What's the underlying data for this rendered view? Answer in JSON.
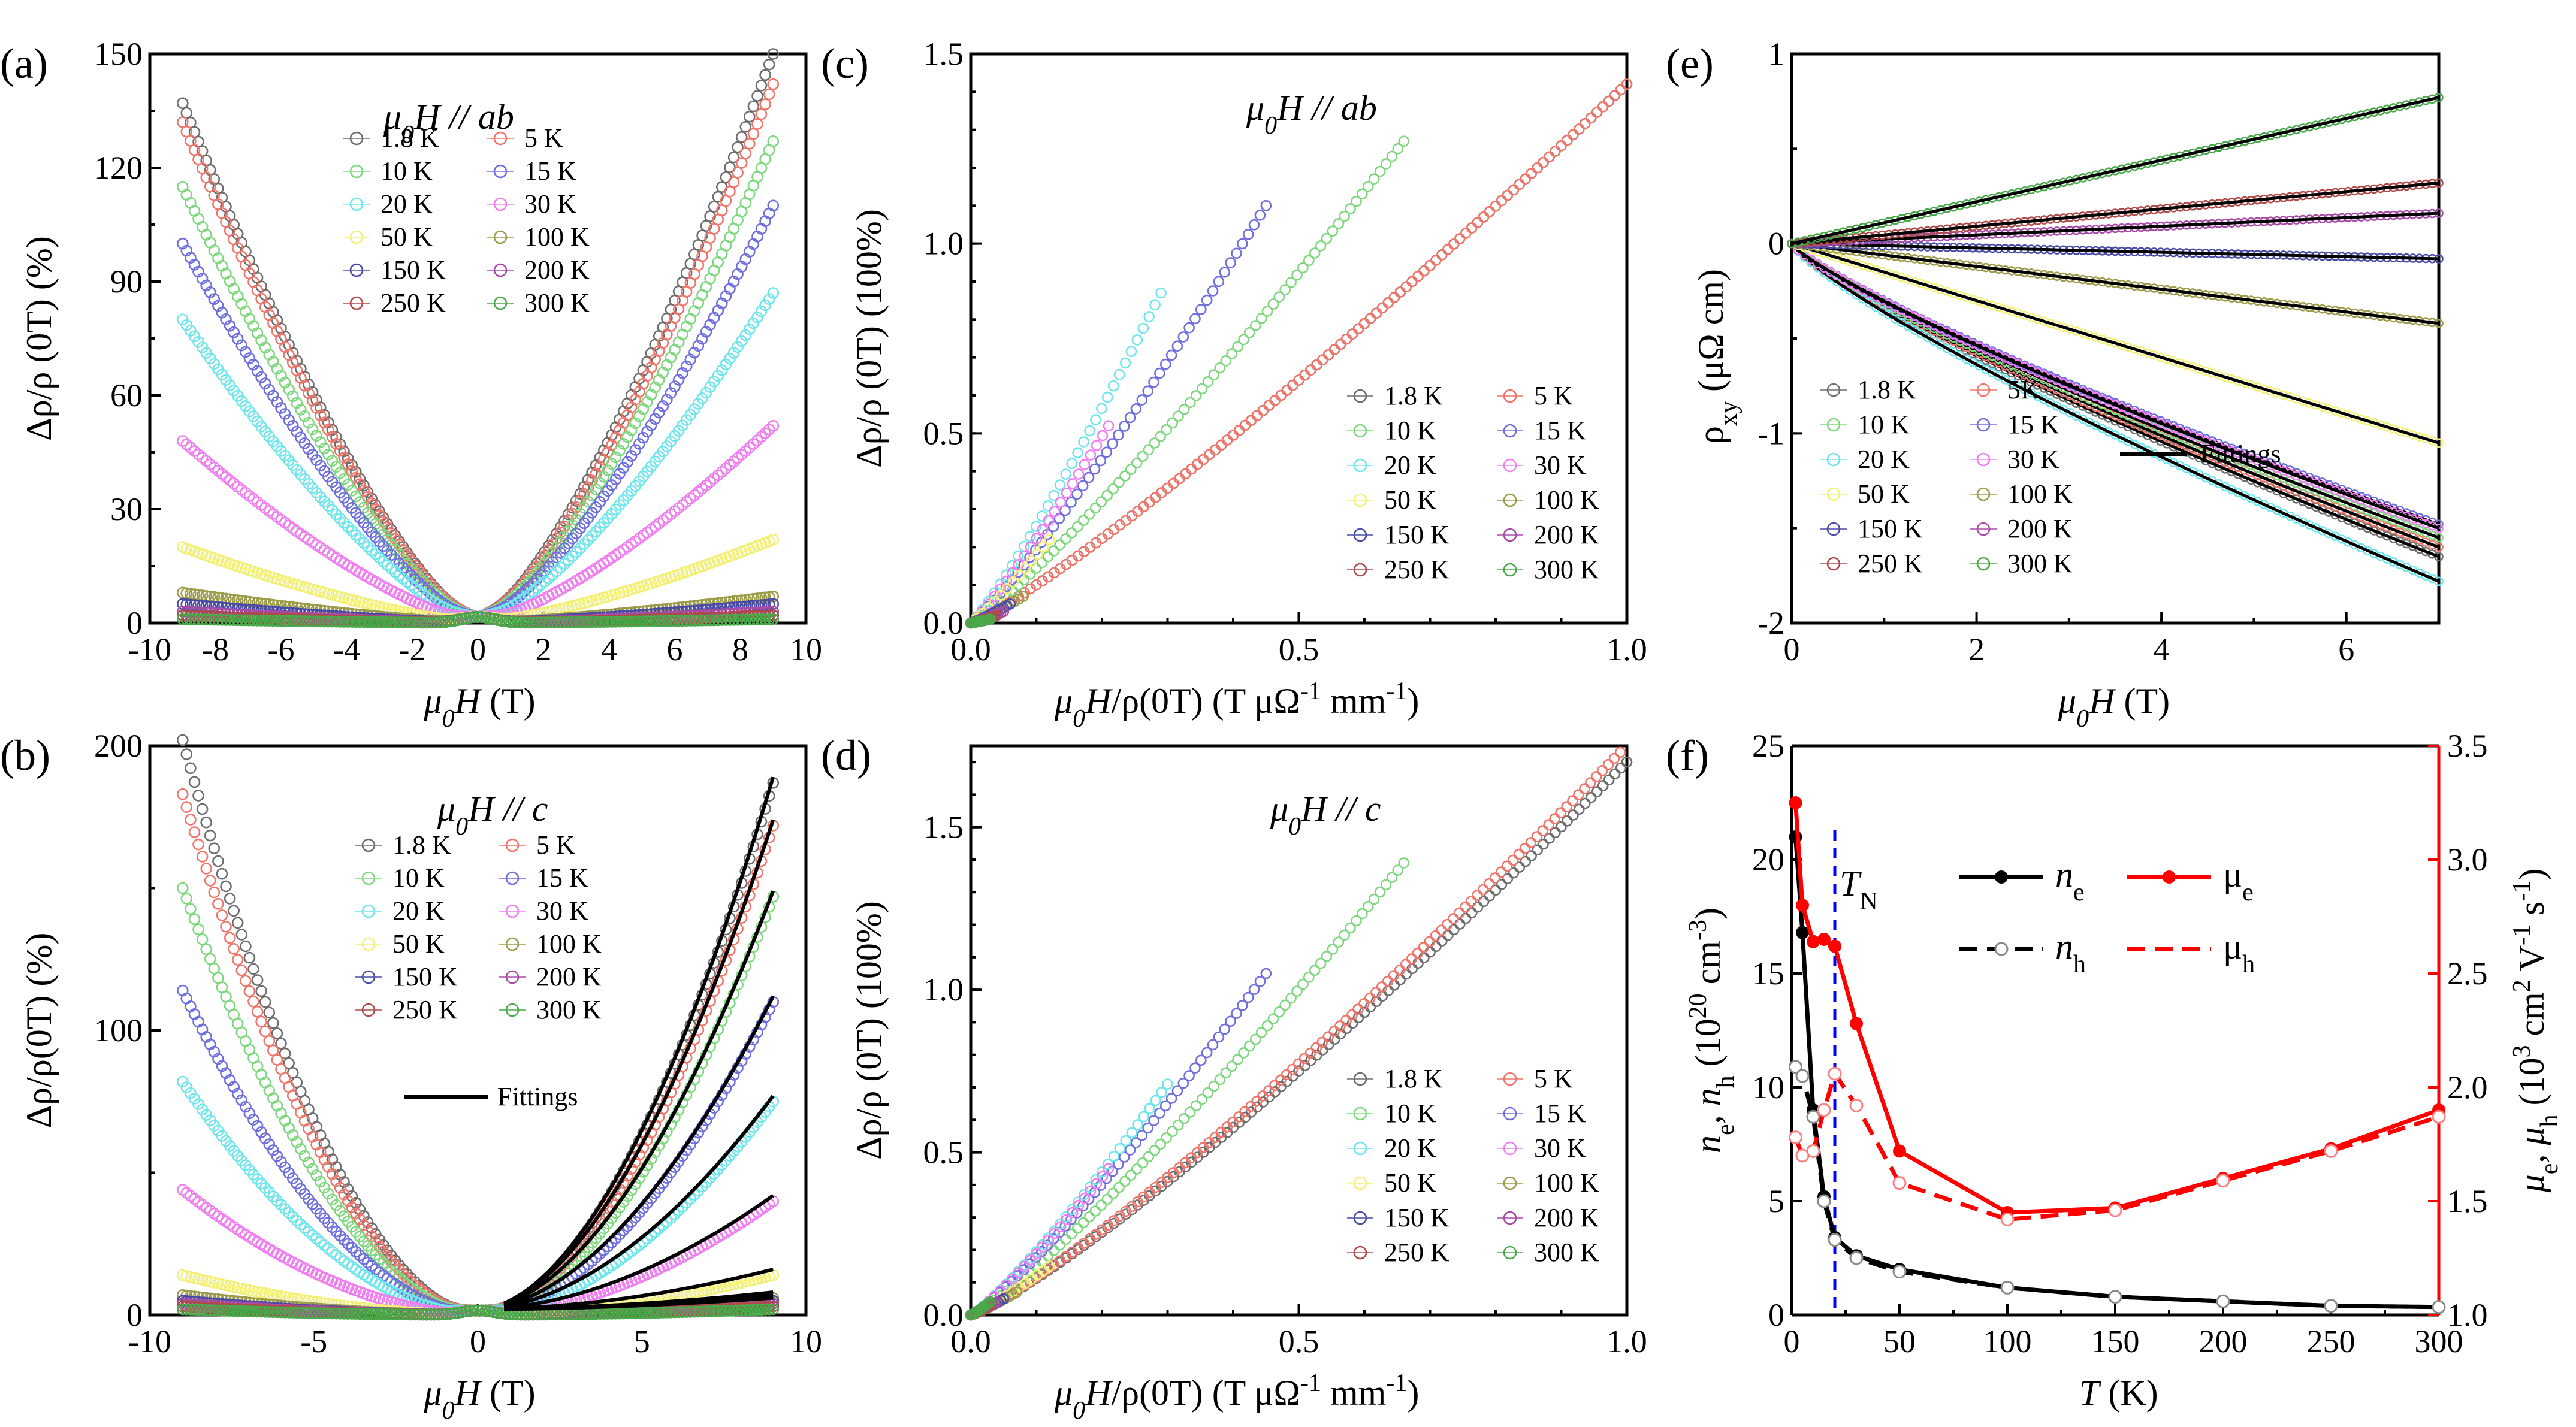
{
  "figure": {
    "palette": {
      "1.8 K": "#6e6e6e",
      "5 K": "#f0756b",
      "10 K": "#7fd87f",
      "15 K": "#6f6fe0",
      "20 K": "#6fe6ec",
      "30 K": "#f07ef0",
      "50 K": "#f3f07a",
      "100 K": "#9c9c4a",
      "150 K": "#4a4aa8",
      "200 K": "#a84aa8",
      "250 K": "#b04a4a",
      "300 K": "#4aa84a",
      "fit": "#000000",
      "accent_red": "#ff0000",
      "tn_blue": "#0000ff"
    }
  },
  "chart_data": [
    {
      "id": "a",
      "panel_label": "(a)",
      "type": "scatter",
      "title": "μ0H // ab",
      "xlabel": "μ0H (T)",
      "ylabel": "Δρ/ρ (0T) (%)",
      "xlim": [
        -10,
        10
      ],
      "ylim": [
        0,
        150
      ],
      "xticks": [
        -10,
        -8,
        -6,
        -4,
        -2,
        0,
        2,
        4,
        6,
        8,
        10
      ],
      "yticks": [
        0,
        30,
        60,
        90,
        120,
        150
      ],
      "legend_position": "top-center",
      "series": [
        {
          "name": "1.8 K",
          "left_end": 137,
          "right_end": 150
        },
        {
          "name": "5 K",
          "left_end": 132,
          "right_end": 142
        },
        {
          "name": "10 K",
          "left_end": 115,
          "right_end": 127
        },
        {
          "name": "15 K",
          "left_end": 100,
          "right_end": 110
        },
        {
          "name": "20 K",
          "left_end": 80,
          "right_end": 87
        },
        {
          "name": "30 K",
          "left_end": 48,
          "right_end": 52
        },
        {
          "name": "50 K",
          "left_end": 20,
          "right_end": 22
        },
        {
          "name": "100 K",
          "left_end": 8,
          "right_end": 7
        },
        {
          "name": "150 K",
          "left_end": 5,
          "right_end": 5
        },
        {
          "name": "200 K",
          "left_end": 3,
          "right_end": 3
        },
        {
          "name": "250 K",
          "left_end": 2,
          "right_end": 2
        },
        {
          "name": "300 K",
          "left_end": 1,
          "right_end": 1
        }
      ]
    },
    {
      "id": "b",
      "panel_label": "(b)",
      "type": "scatter",
      "title": "μ0H // c",
      "xlabel": "μ0H (T)",
      "ylabel": "Δρ/ρ(0T) (%)",
      "xlim": [
        -10,
        10
      ],
      "ylim": [
        0,
        200
      ],
      "xticks": [
        -10,
        -5,
        0,
        5,
        10
      ],
      "yticks": [
        0,
        100,
        200
      ],
      "legend_position": "top-center",
      "fit_label": "Fittings",
      "series": [
        {
          "name": "1.8 K",
          "left_end": 202,
          "right_end": 187
        },
        {
          "name": "5 K",
          "left_end": 183,
          "right_end": 172
        },
        {
          "name": "10 K",
          "left_end": 150,
          "right_end": 147
        },
        {
          "name": "15 K",
          "left_end": 114,
          "right_end": 110
        },
        {
          "name": "20 K",
          "left_end": 82,
          "right_end": 75
        },
        {
          "name": "30 K",
          "left_end": 44,
          "right_end": 40
        },
        {
          "name": "50 K",
          "left_end": 14,
          "right_end": 14
        },
        {
          "name": "100 K",
          "left_end": 7,
          "right_end": 6
        },
        {
          "name": "150 K",
          "left_end": 5,
          "right_end": 5
        },
        {
          "name": "200 K",
          "left_end": 4,
          "right_end": 4
        },
        {
          "name": "250 K",
          "left_end": 3,
          "right_end": 3
        },
        {
          "name": "300 K",
          "left_end": 2,
          "right_end": 2
        }
      ]
    },
    {
      "id": "c",
      "panel_label": "(c)",
      "type": "scatter",
      "title": "μ0H // ab",
      "xlabel": "μ0H/ρ(0T) (T μΩ-1 mm-1)",
      "ylabel": "Δρ/ρ (0T) (100%)",
      "xlim": [
        0,
        1.0
      ],
      "ylim": [
        0,
        1.5
      ],
      "xticks": [
        0.0,
        0.5,
        1.0
      ],
      "yticks": [
        0.0,
        0.5,
        1.0,
        1.5
      ],
      "legend_position": "bottom-right",
      "series": [
        {
          "name": "1.8 K",
          "x_end": 1.0,
          "y_end": 1.42
        },
        {
          "name": "5 K",
          "x_end": 1.0,
          "y_end": 1.42
        },
        {
          "name": "10 K",
          "x_end": 0.66,
          "y_end": 1.27
        },
        {
          "name": "15 K",
          "x_end": 0.45,
          "y_end": 1.1
        },
        {
          "name": "20 K",
          "x_end": 0.29,
          "y_end": 0.87
        },
        {
          "name": "30 K",
          "x_end": 0.21,
          "y_end": 0.52
        },
        {
          "name": "50 K",
          "x_end": 0.12,
          "y_end": 0.22
        },
        {
          "name": "100 K",
          "x_end": 0.08,
          "y_end": 0.07
        },
        {
          "name": "150 K",
          "x_end": 0.06,
          "y_end": 0.05
        },
        {
          "name": "200 K",
          "x_end": 0.05,
          "y_end": 0.03
        },
        {
          "name": "250 K",
          "x_end": 0.04,
          "y_end": 0.02
        },
        {
          "name": "300 K",
          "x_end": 0.03,
          "y_end": 0.01
        }
      ]
    },
    {
      "id": "d",
      "panel_label": "(d)",
      "type": "scatter",
      "title": "μ0H // c",
      "xlabel": "μ0H/ρ(0T) (T μΩ-1 mm-1)",
      "ylabel": "Δρ/ρ (0T) (100%)",
      "xlim": [
        0,
        1.0
      ],
      "ylim": [
        0,
        1.75
      ],
      "xticks": [
        0.0,
        0.5,
        1.0
      ],
      "yticks": [
        0.0,
        0.5,
        1.0,
        1.5
      ],
      "legend_position": "bottom-right",
      "series": [
        {
          "name": "1.8 K",
          "x_end": 1.0,
          "y_end": 1.7
        },
        {
          "name": "5 K",
          "x_end": 0.99,
          "y_end": 1.73
        },
        {
          "name": "10 K",
          "x_end": 0.66,
          "y_end": 1.39
        },
        {
          "name": "15 K",
          "x_end": 0.45,
          "y_end": 1.05
        },
        {
          "name": "20 K",
          "x_end": 0.3,
          "y_end": 0.71
        },
        {
          "name": "30 K",
          "x_end": 0.21,
          "y_end": 0.45
        },
        {
          "name": "50 K",
          "x_end": 0.12,
          "y_end": 0.15
        },
        {
          "name": "100 K",
          "x_end": 0.07,
          "y_end": 0.07
        },
        {
          "name": "150 K",
          "x_end": 0.05,
          "y_end": 0.05
        },
        {
          "name": "200 K",
          "x_end": 0.04,
          "y_end": 0.04
        },
        {
          "name": "250 K",
          "x_end": 0.03,
          "y_end": 0.03
        },
        {
          "name": "300 K",
          "x_end": 0.03,
          "y_end": 0.04
        }
      ]
    },
    {
      "id": "e",
      "panel_label": "(e)",
      "type": "scatter",
      "xlabel": "μ0H (T)",
      "ylabel": "ρxy (μΩ cm)",
      "xlim": [
        0,
        7
      ],
      "ylim": [
        -2,
        1
      ],
      "xticks": [
        0,
        2,
        4,
        6
      ],
      "yticks": [
        -2,
        -1,
        0,
        1
      ],
      "legend_position": "bottom-left",
      "fit_label": "Fittings",
      "series": [
        {
          "name": "1.8 K",
          "y_end": -1.65
        },
        {
          "name": "5K",
          "y_end": -1.6
        },
        {
          "name": "10 K",
          "y_end": -1.55
        },
        {
          "name": "15 K",
          "y_end": -1.48
        },
        {
          "name": "20 K",
          "y_end": -1.78
        },
        {
          "name": "30 K",
          "y_end": -1.5
        },
        {
          "name": "50 K",
          "y_end": -1.05
        },
        {
          "name": "100 K",
          "y_end": -0.42
        },
        {
          "name": "150 K",
          "y_end": -0.08
        },
        {
          "name": "200 K",
          "y_end": 0.16
        },
        {
          "name": "250 K",
          "y_end": 0.32
        },
        {
          "name": "300 K",
          "y_end": 0.77
        }
      ]
    },
    {
      "id": "f",
      "panel_label": "(f)",
      "type": "line",
      "xlabel": "T (K)",
      "ylabel_left": "ne, nh (10^20 cm^-3)",
      "ylabel_right": "μe, μh (10^3 cm^2 V^-1 s^-1)",
      "xlim": [
        0,
        300
      ],
      "ylim_left": [
        0,
        25
      ],
      "ylim_right": [
        1.0,
        3.5
      ],
      "xticks": [
        0,
        50,
        100,
        150,
        200,
        250,
        300
      ],
      "yticks_left": [
        0,
        5,
        10,
        15,
        20,
        25
      ],
      "yticks_right": [
        1.0,
        1.5,
        2.0,
        2.5,
        3.0,
        3.5
      ],
      "annotation": {
        "text": "TN",
        "x": 20
      },
      "legend_position": "top-right",
      "x": [
        1.8,
        5,
        10,
        15,
        20,
        30,
        50,
        100,
        150,
        200,
        250,
        300
      ],
      "series": [
        {
          "name": "ne",
          "axis": "left",
          "style": "solid",
          "values": [
            21.0,
            16.8,
            9.0,
            5.2,
            3.4,
            2.6,
            2.0,
            1.2,
            0.8,
            0.6,
            0.4,
            0.35
          ]
        },
        {
          "name": "μe",
          "axis": "right",
          "style": "solid",
          "values": [
            3.25,
            2.8,
            2.64,
            2.65,
            2.62,
            2.28,
            1.72,
            1.45,
            1.47,
            1.6,
            1.73,
            1.9
          ]
        },
        {
          "name": "nh",
          "axis": "left",
          "style": "dashed",
          "values": [
            10.9,
            10.5,
            8.7,
            5.0,
            3.3,
            2.5,
            1.9,
            1.2,
            0.8,
            0.6,
            0.4,
            0.35
          ]
        },
        {
          "name": "μh",
          "axis": "right",
          "style": "dashed",
          "values": [
            1.78,
            1.7,
            1.72,
            1.9,
            2.06,
            1.92,
            1.58,
            1.42,
            1.46,
            1.59,
            1.72,
            1.87
          ]
        }
      ]
    }
  ]
}
